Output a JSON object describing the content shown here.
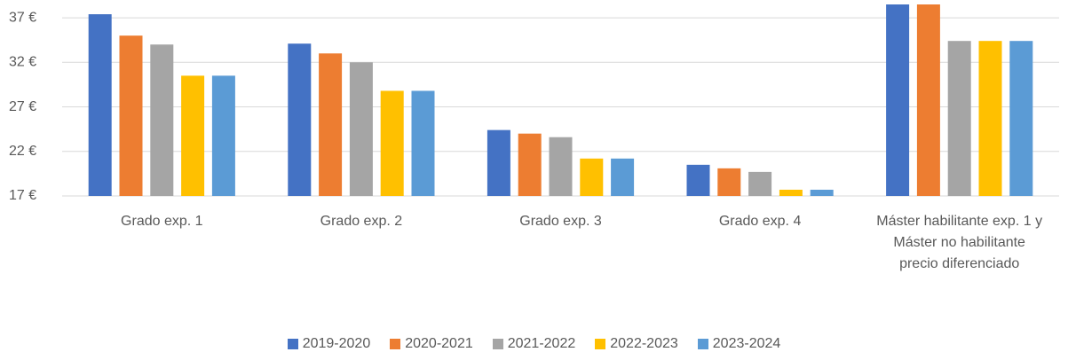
{
  "chart_data": {
    "type": "bar",
    "categories": [
      "Grado exp. 1",
      "Grado exp. 2",
      "Grado exp. 3",
      "Grado exp. 4",
      "Máster habilitante exp. 1  y Máster no habilitante precio diferenciado"
    ],
    "series": [
      {
        "name": "2019-2020",
        "color": "#4472c4",
        "values": [
          37.4,
          34.1,
          24.4,
          20.5,
          38.5
        ]
      },
      {
        "name": "2020-2021",
        "color": "#ed7d31",
        "values": [
          35.0,
          33.0,
          24.0,
          20.1,
          38.5
        ]
      },
      {
        "name": "2021-2022",
        "color": "#a5a5a5",
        "values": [
          34.0,
          32.0,
          23.6,
          19.7,
          34.4
        ]
      },
      {
        "name": "2022-2023",
        "color": "#ffc000",
        "values": [
          30.5,
          28.8,
          21.2,
          17.7,
          34.4
        ]
      },
      {
        "name": "2023-2024",
        "color": "#5b9bd5",
        "values": [
          30.5,
          28.8,
          21.2,
          17.7,
          34.4
        ]
      }
    ],
    "ylim": [
      17,
      38.5
    ],
    "yticks": [
      {
        "value": 17,
        "label": "17 €"
      },
      {
        "value": 22,
        "label": "22 €"
      },
      {
        "value": 27,
        "label": "27 €"
      },
      {
        "value": 32,
        "label": "32 €"
      },
      {
        "value": 37,
        "label": "37 €"
      }
    ],
    "grid": true
  }
}
